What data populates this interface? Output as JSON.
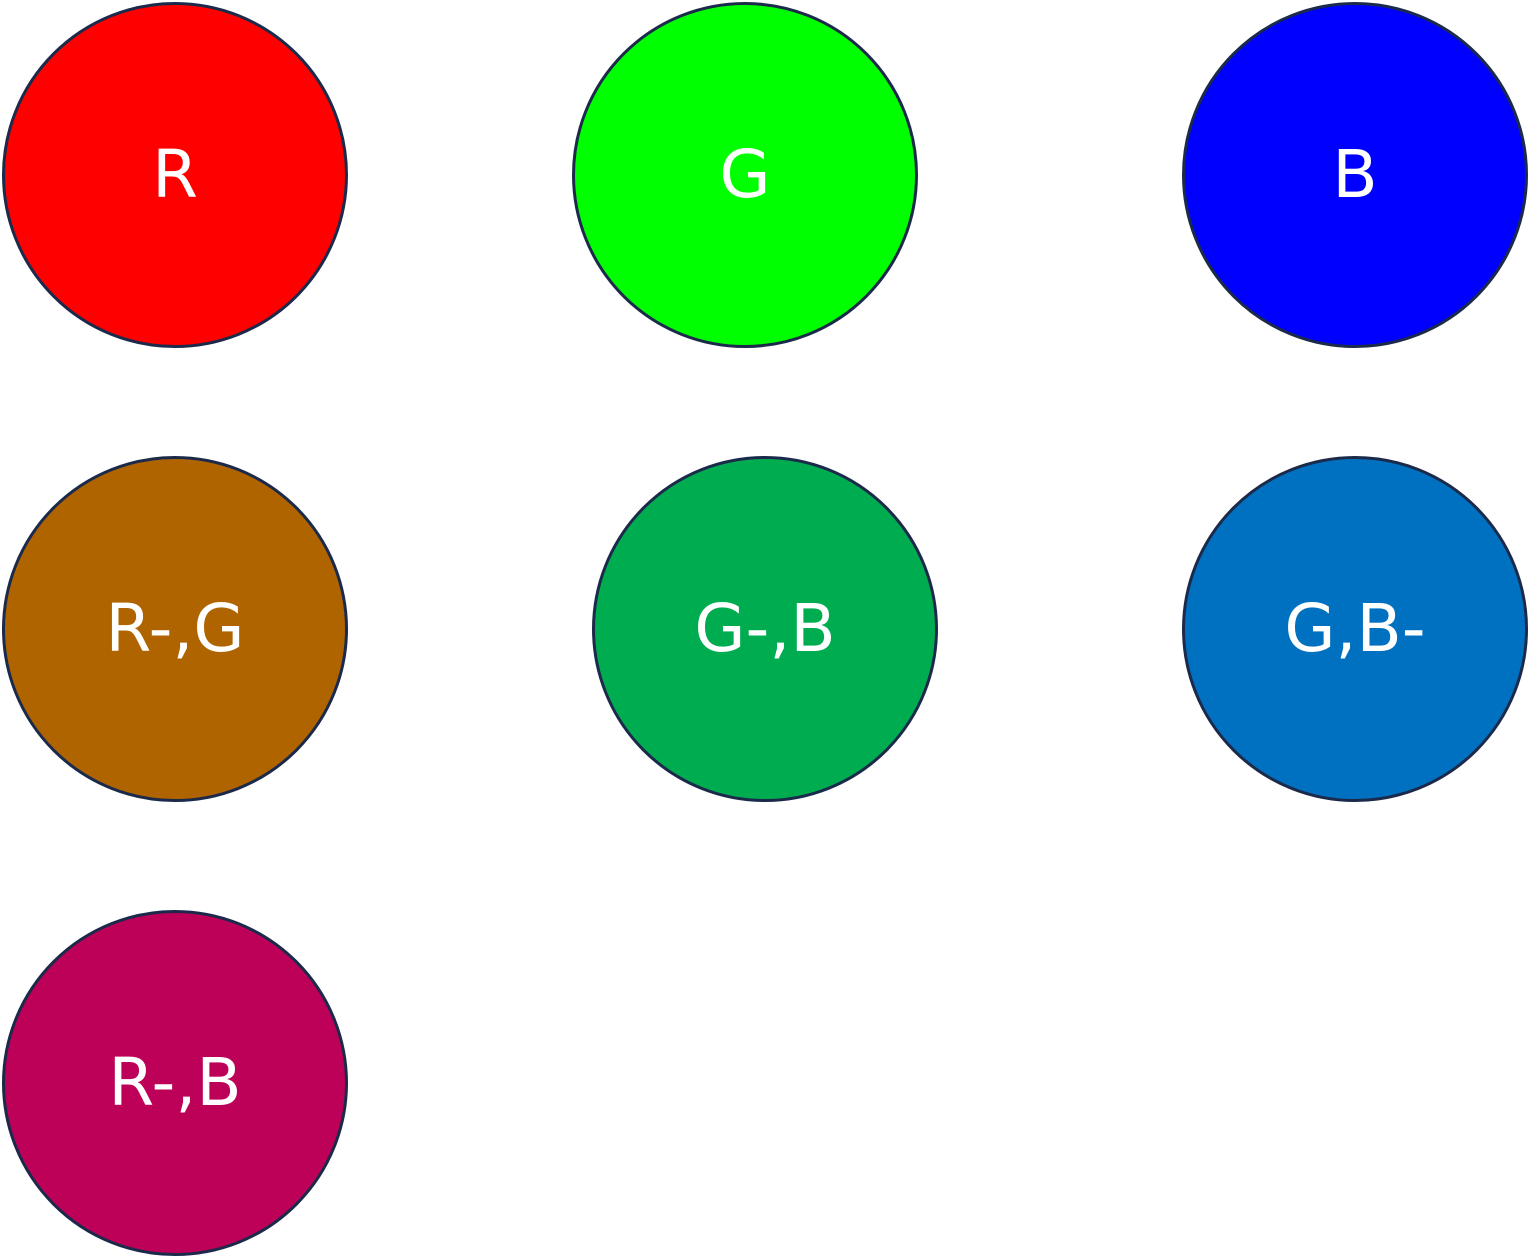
{
  "circles": [
    {
      "label": "R",
      "color": "#ff0000"
    },
    {
      "label": "G",
      "color": "#00ff00"
    },
    {
      "label": "B",
      "color": "#0000ff"
    },
    {
      "label": "R-,G",
      "color": "#af6400"
    },
    {
      "label": "G-,B",
      "color": "#00ac50"
    },
    {
      "label": "G,B-",
      "color": "#0071c1"
    },
    {
      "label": "R-,B",
      "color": "#bd0058"
    }
  ],
  "border_color": "#1b2a4a"
}
